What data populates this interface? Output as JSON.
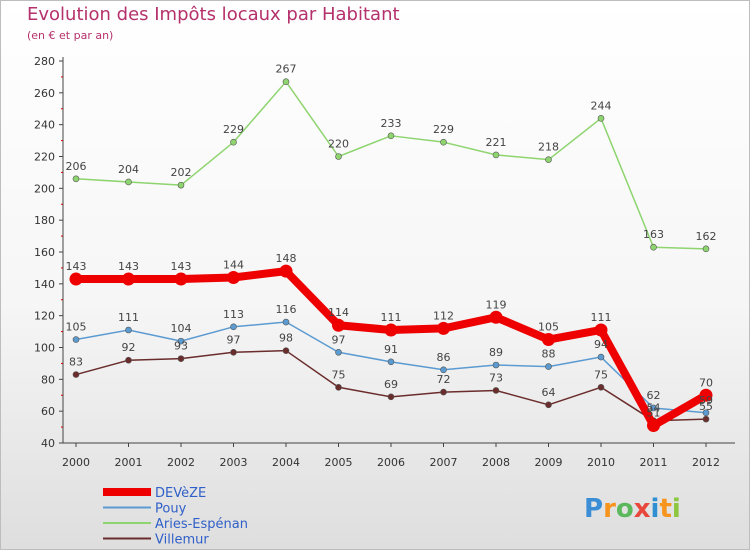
{
  "header": {
    "title": "Evolution des Impôts locaux par Habitant",
    "subtitle": "(en € et par an)"
  },
  "brand": {
    "letters": [
      "P",
      "r",
      "o",
      "x",
      "i",
      "t",
      "i"
    ],
    "colors": [
      "#3b8ed6",
      "#f7941d",
      "#5cb85c",
      "#e8483b",
      "#2f8fd1",
      "#f7941d",
      "#8dc63f"
    ]
  },
  "chart_data": {
    "type": "line",
    "x": [
      2000,
      2001,
      2002,
      2003,
      2004,
      2005,
      2006,
      2007,
      2008,
      2009,
      2010,
      2011,
      2012
    ],
    "ylim": [
      40,
      280
    ],
    "yticks": [
      40,
      60,
      80,
      100,
      120,
      140,
      160,
      180,
      200,
      220,
      240,
      260,
      280
    ],
    "grid": false,
    "legend_position": "bottom-left",
    "series": [
      {
        "name": "DEVèZE",
        "color": "#ee0000",
        "values": [
          143,
          143,
          143,
          144,
          148,
          114,
          111,
          112,
          119,
          105,
          111,
          51,
          70
        ],
        "labels": [
          "143",
          "143",
          "143",
          "144",
          "148",
          "114",
          "111",
          "112",
          "119",
          "105",
          "111",
          "51",
          "70"
        ]
      },
      {
        "name": "Pouy",
        "color": "#5b9bd1",
        "values": [
          105,
          111,
          104,
          113,
          116,
          97,
          91,
          86,
          89,
          88,
          94,
          62,
          59
        ],
        "labels": [
          "105",
          "111",
          "104",
          "113",
          "116",
          "97",
          "91",
          "86",
          "89",
          "88",
          "94",
          "62",
          "59"
        ]
      },
      {
        "name": "Aries-Espénan",
        "color": "#8ed46f",
        "values": [
          206,
          204,
          202,
          229,
          267,
          220,
          233,
          229,
          221,
          218,
          244,
          163,
          162
        ],
        "labels": [
          "206",
          "204",
          "202",
          "229",
          "267",
          "220",
          "233",
          "229",
          "221",
          "218",
          "244",
          "163",
          "162"
        ]
      },
      {
        "name": "Villemur",
        "color": "#6b2c2c",
        "values": [
          83,
          92,
          93,
          97,
          98,
          75,
          69,
          72,
          73,
          64,
          75,
          54,
          55
        ],
        "labels": [
          "83",
          "92",
          "93",
          "97",
          "98",
          "75",
          "69",
          "72",
          "73",
          "64",
          "75",
          "54",
          "55"
        ]
      }
    ]
  }
}
